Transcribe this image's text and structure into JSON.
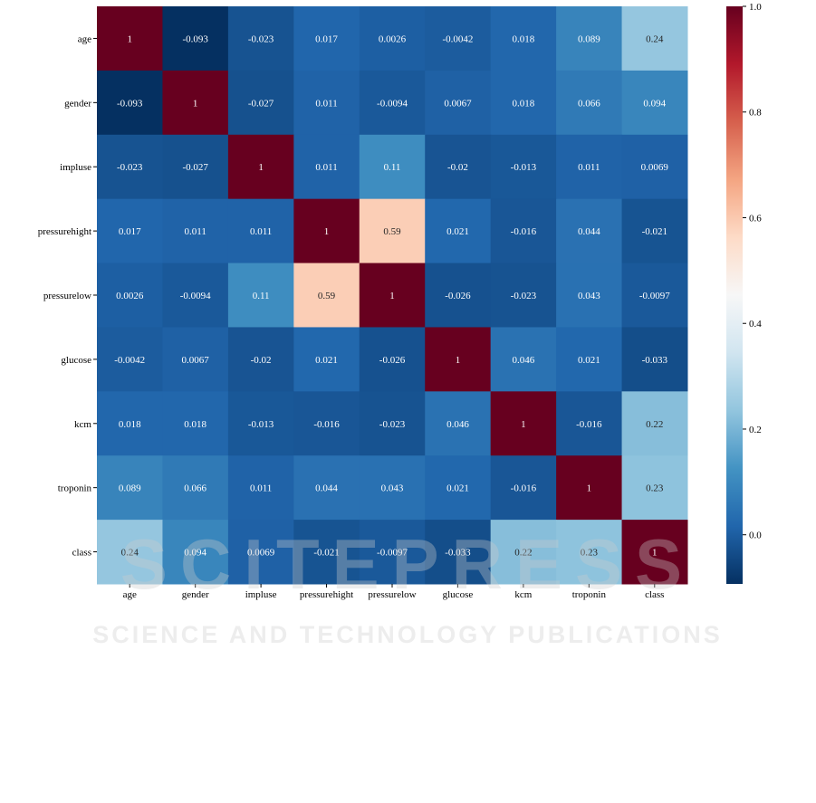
{
  "chart_data": {
    "type": "heatmap",
    "title": "",
    "xlabel": "",
    "ylabel": "",
    "categories": [
      "age",
      "gender",
      "impluse",
      "pressurehight",
      "pressurelow",
      "glucose",
      "kcm",
      "troponin",
      "class"
    ],
    "rows": [
      "age",
      "gender",
      "impluse",
      "pressurehight",
      "pressurelow",
      "glucose",
      "kcm",
      "troponin",
      "class"
    ],
    "values": [
      [
        1,
        -0.093,
        -0.023,
        0.017,
        0.0026,
        -0.0042,
        0.018,
        0.089,
        0.24
      ],
      [
        -0.093,
        1,
        -0.027,
        0.011,
        -0.0094,
        0.0067,
        0.018,
        0.066,
        0.094
      ],
      [
        -0.023,
        -0.027,
        1,
        0.011,
        0.11,
        -0.02,
        -0.013,
        0.011,
        0.0069
      ],
      [
        0.017,
        0.011,
        0.011,
        1,
        0.59,
        0.021,
        -0.016,
        0.044,
        -0.021
      ],
      [
        0.0026,
        -0.0094,
        0.11,
        0.59,
        1,
        -0.026,
        -0.023,
        0.043,
        -0.0097
      ],
      [
        -0.0042,
        0.0067,
        -0.02,
        0.021,
        -0.026,
        1,
        0.046,
        0.021,
        -0.033
      ],
      [
        0.018,
        0.018,
        -0.013,
        -0.016,
        -0.023,
        0.046,
        1,
        -0.016,
        0.22
      ],
      [
        0.089,
        0.066,
        0.011,
        0.044,
        0.043,
        0.021,
        -0.016,
        1,
        0.23
      ],
      [
        0.24,
        0.094,
        0.0069,
        -0.021,
        -0.0097,
        -0.033,
        0.22,
        0.23,
        1
      ]
    ],
    "labels": [
      [
        "1",
        "-0.093",
        "-0.023",
        "0.017",
        "0.0026",
        "-0.0042",
        "0.018",
        "0.089",
        "0.24"
      ],
      [
        "-0.093",
        "1",
        "-0.027",
        "0.011",
        "-0.0094",
        "0.0067",
        "0.018",
        "0.066",
        "0.094"
      ],
      [
        "-0.023",
        "-0.027",
        "1",
        "0.011",
        "0.11",
        "-0.02",
        "-0.013",
        "0.011",
        "0.0069"
      ],
      [
        "0.017",
        "0.011",
        "0.011",
        "1",
        "0.59",
        "0.021",
        "-0.016",
        "0.044",
        "-0.021"
      ],
      [
        "0.0026",
        "-0.0094",
        "0.11",
        "0.59",
        "1",
        "-0.026",
        "-0.023",
        "0.043",
        "-0.0097"
      ],
      [
        "-0.0042",
        "0.0067",
        "-0.02",
        "0.021",
        "-0.026",
        "1",
        "0.046",
        "0.021",
        "-0.033"
      ],
      [
        "0.018",
        "0.018",
        "-0.013",
        "-0.016",
        "-0.023",
        "0.046",
        "1",
        "-0.016",
        "0.22"
      ],
      [
        "0.089",
        "0.066",
        "0.011",
        "0.044",
        "0.043",
        "0.021",
        "-0.016",
        "1",
        "0.23"
      ],
      [
        "0.24",
        "0.094",
        "0.0069",
        "-0.021",
        "-0.0097",
        "-0.033",
        "0.22",
        "0.23",
        "1"
      ]
    ],
    "colormap": "RdBu_r",
    "colorbar": {
      "min": -0.093,
      "max": 1.0,
      "ticks": [
        0.0,
        0.2,
        0.4,
        0.6,
        0.8,
        1.0
      ],
      "tick_labels": [
        "0.0",
        "0.2",
        "0.4",
        "0.6",
        "0.8",
        "1.0"
      ]
    },
    "grid": false
  },
  "watermark": {
    "main_text": "SCITEPRESS",
    "sub_text": "SCIENCE AND TECHNOLOGY PUBLICATIONS",
    "color": "#cccccc"
  }
}
